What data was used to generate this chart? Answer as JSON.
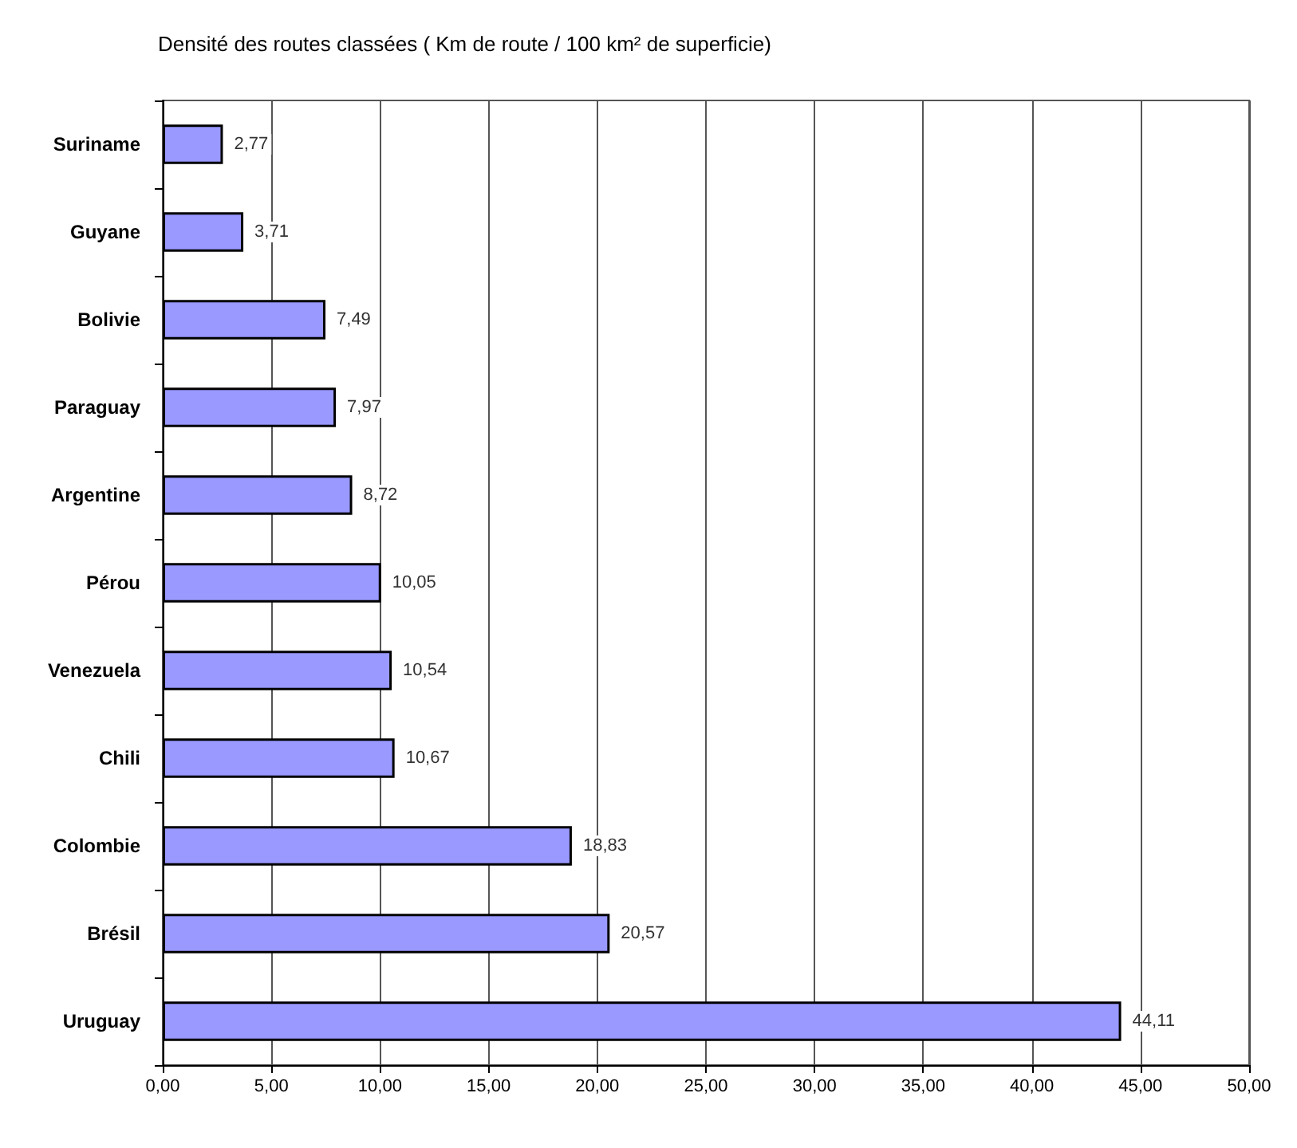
{
  "chart_data": {
    "type": "bar",
    "orientation": "horizontal",
    "title": "Densité des routes classées ( Km de route / 100 km² de superficie)",
    "categories": [
      "Suriname",
      "Guyane",
      "Bolivie",
      "Paraguay",
      "Argentine",
      "Pérou",
      "Venezuela",
      "Chili",
      "Colombie",
      "Brésil",
      "Uruguay"
    ],
    "values": [
      2.77,
      3.71,
      7.49,
      7.97,
      8.72,
      10.05,
      10.54,
      10.67,
      18.83,
      20.57,
      44.11
    ],
    "value_labels": [
      "2,77",
      "3,71",
      "7,49",
      "7,97",
      "8,72",
      "10,05",
      "10,54",
      "10,67",
      "18,83",
      "20,57",
      "44,11"
    ],
    "color": "#9999ff",
    "xlim": [
      0,
      50
    ],
    "xticks": [
      {
        "value": 0,
        "label": "0,00"
      },
      {
        "value": 5,
        "label": "5,00"
      },
      {
        "value": 10,
        "label": "10,00"
      },
      {
        "value": 15,
        "label": "15,00"
      },
      {
        "value": 20,
        "label": "20,00"
      },
      {
        "value": 25,
        "label": "25,00"
      },
      {
        "value": 30,
        "label": "30,00"
      },
      {
        "value": 35,
        "label": "35,00"
      },
      {
        "value": 40,
        "label": "40,00"
      },
      {
        "value": 45,
        "label": "45,00"
      },
      {
        "value": 50,
        "label": "50,00"
      }
    ],
    "grid": "x"
  }
}
